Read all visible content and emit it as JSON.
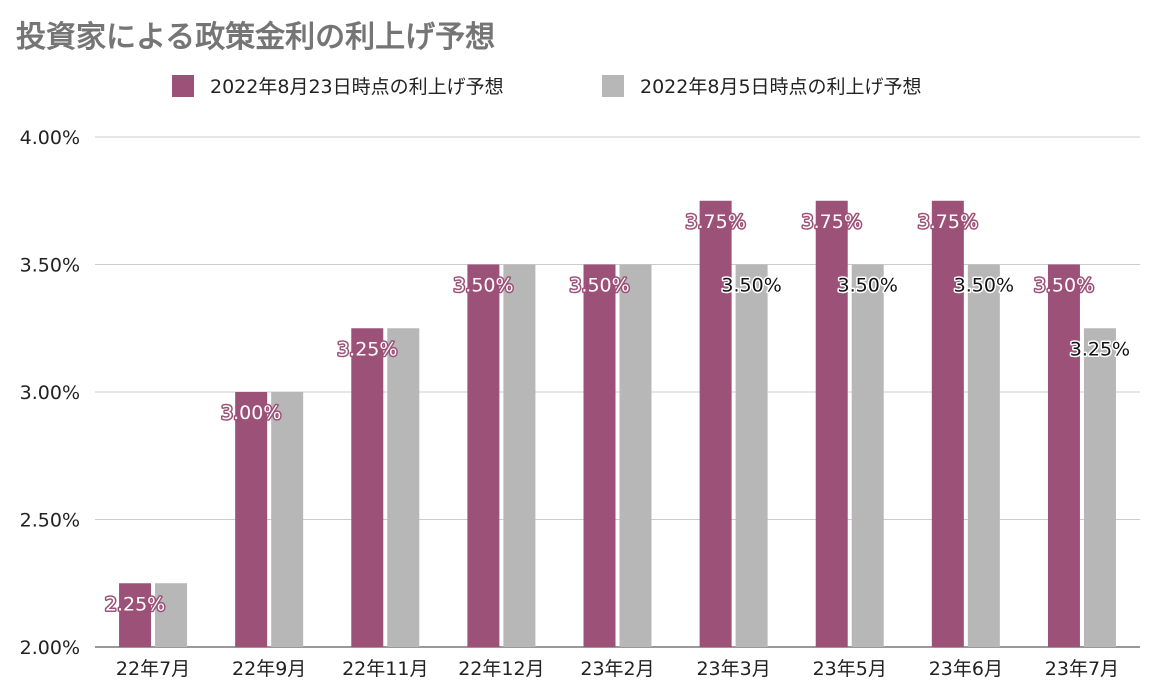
{
  "chart_data": {
    "type": "bar",
    "title": "投資家による政策金利の利上げ予想",
    "categories": [
      "22年7月",
      "22年9月",
      "22年11月",
      "22年12月",
      "23年2月",
      "23年3月",
      "23年5月",
      "23年6月",
      "23年7月"
    ],
    "series": [
      {
        "name": "2022年8月23日時点の利上げ予想",
        "color": "#9c5278",
        "values": [
          2.25,
          3.0,
          3.25,
          3.5,
          3.5,
          3.75,
          3.75,
          3.75,
          3.5
        ],
        "labels": [
          "2.25%",
          "3.00%",
          "3.25%",
          "3.50%",
          "3.50%",
          "3.75%",
          "3.75%",
          "3.75%",
          "3.50%"
        ]
      },
      {
        "name": "2022年8月5日時点の利上げ予想",
        "color": "#b7b7b7",
        "values": [
          2.25,
          3.0,
          3.25,
          3.5,
          3.5,
          3.5,
          3.5,
          3.5,
          3.25
        ],
        "labels": [
          "",
          "",
          "",
          "",
          "",
          "3.50%",
          "3.50%",
          "3.50%",
          "3.25%"
        ]
      }
    ],
    "ylim": [
      2.0,
      4.0
    ],
    "yticks": [
      2.0,
      2.5,
      3.0,
      3.5,
      4.0
    ],
    "ytick_labels": [
      "2.00%",
      "2.50%",
      "3.00%",
      "3.50%",
      "4.00%"
    ],
    "xlabel": "",
    "ylabel": "",
    "legend_position": "top",
    "grid": true
  }
}
